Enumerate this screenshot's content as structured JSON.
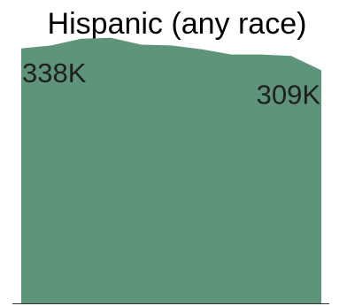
{
  "chart_data": {
    "type": "area",
    "title": "Hispanic (any race)",
    "xlabel": "",
    "ylabel": "",
    "x": [
      0,
      1,
      2,
      3,
      4,
      5,
      6,
      7,
      8,
      9,
      10
    ],
    "values": [
      338000,
      342000,
      351000,
      352000,
      343000,
      342000,
      337000,
      330000,
      330000,
      328000,
      309000
    ],
    "ylim": [
      0,
      360000
    ],
    "annotations": [
      {
        "text": "338K",
        "point": "first"
      },
      {
        "text": "309K",
        "point": "last"
      }
    ],
    "color": "#5e9479",
    "grid": false,
    "legend": "none"
  }
}
